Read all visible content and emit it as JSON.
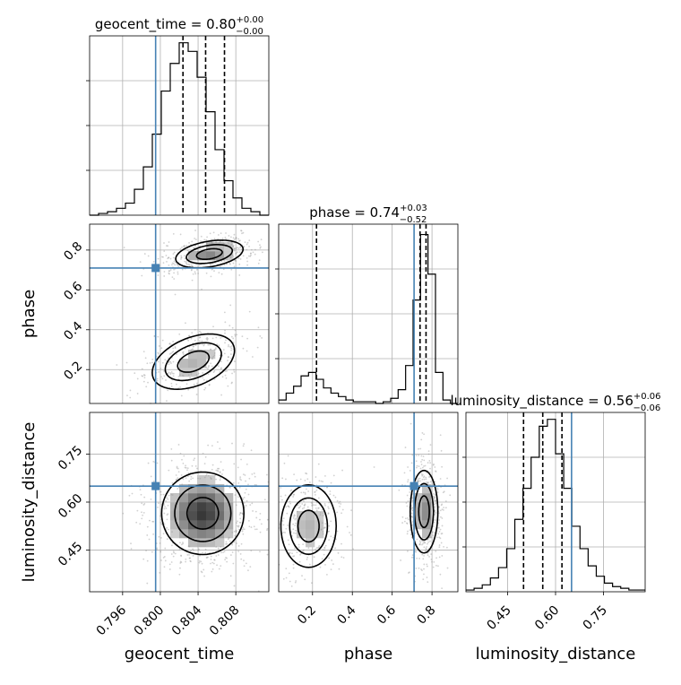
{
  "chart_data": {
    "type": "corner",
    "parameters": [
      {
        "name": "geocent_time",
        "range": [
          0.7925,
          0.8115
        ],
        "ticks": [
          0.796,
          0.8,
          0.804,
          0.808
        ],
        "tick_labels": [
          "0.796",
          "0.800",
          "0.804",
          "0.808"
        ],
        "truth": 0.7995,
        "quantiles": [
          0.8024,
          0.8048,
          0.8068
        ],
        "title": {
          "param": "geocent_time",
          "value": "0.80",
          "plus": "+0.00",
          "minus": "−0.00"
        }
      },
      {
        "name": "phase",
        "range": [
          0.03,
          0.93
        ],
        "ticks": [
          0.2,
          0.4,
          0.6,
          0.8
        ],
        "tick_labels": [
          "0.2",
          "0.4",
          "0.6",
          "0.8"
        ],
        "truth": 0.71,
        "quantiles": [
          0.22,
          0.74,
          0.77
        ],
        "title": {
          "param": "phase",
          "value": "0.74",
          "plus": "+0.03",
          "minus": "−0.52"
        }
      },
      {
        "name": "luminosity_distance",
        "range": [
          0.32,
          0.88
        ],
        "ticks": [
          0.45,
          0.6,
          0.75
        ],
        "tick_labels": [
          "0.45",
          "0.60",
          "0.75"
        ],
        "truth": 0.65,
        "quantiles": [
          0.5,
          0.56,
          0.62
        ],
        "title": {
          "param": "luminosity_distance",
          "value": "0.56",
          "plus": "+0.06",
          "minus": "−0.06"
        }
      }
    ],
    "histograms": [
      {
        "param": "geocent_time",
        "counts": [
          0,
          1,
          2,
          4,
          7,
          15,
          28,
          47,
          72,
          88,
          100,
          95,
          80,
          60,
          38,
          20,
          10,
          4,
          2,
          0
        ],
        "ylim": [
          0,
          104
        ]
      },
      {
        "param": "phase",
        "counts": [
          2,
          6,
          10,
          16,
          18,
          14,
          9,
          6,
          4,
          2,
          1,
          1,
          1,
          0,
          1,
          3,
          8,
          22,
          60,
          98,
          75,
          18,
          2,
          0
        ],
        "ylim": [
          0,
          104
        ]
      },
      {
        "param": "luminosity_distance",
        "counts": [
          1,
          2,
          4,
          8,
          14,
          25,
          42,
          60,
          78,
          96,
          100,
          80,
          60,
          38,
          25,
          15,
          9,
          5,
          3,
          2,
          1,
          1
        ],
        "ylim": [
          0,
          104
        ]
      }
    ],
    "scatter_panels": [
      {
        "x": "geocent_time",
        "y": "phase",
        "modes": [
          {
            "cx": 0.8052,
            "cy": 0.78,
            "sx": 0.0018,
            "sy": 0.035,
            "rho": 0.35,
            "weight": 0.62
          },
          {
            "cx": 0.8035,
            "cy": 0.24,
            "sx": 0.0022,
            "sy": 0.07,
            "rho": 0.4,
            "weight": 0.38
          }
        ]
      },
      {
        "x": "geocent_time",
        "y": "luminosity_distance",
        "modes": [
          {
            "cx": 0.8045,
            "cy": 0.565,
            "sx": 0.0022,
            "sy": 0.065,
            "rho": 0.0,
            "weight": 1.0
          }
        ]
      },
      {
        "x": "phase",
        "y": "luminosity_distance",
        "modes": [
          {
            "cx": 0.76,
            "cy": 0.57,
            "sx": 0.035,
            "sy": 0.065,
            "rho": 0.0,
            "weight": 0.62
          },
          {
            "cx": 0.18,
            "cy": 0.525,
            "sx": 0.07,
            "sy": 0.065,
            "rho": 0.0,
            "weight": 0.38
          }
        ]
      }
    ],
    "axis_labels": {
      "x": [
        "geocent_time",
        "phase",
        "luminosity_distance"
      ],
      "y": [
        "phase",
        "luminosity_distance"
      ]
    },
    "grid": true,
    "truth_color": "#4682b4",
    "line_color": "#000000",
    "point_color": "#9a9a9a"
  }
}
